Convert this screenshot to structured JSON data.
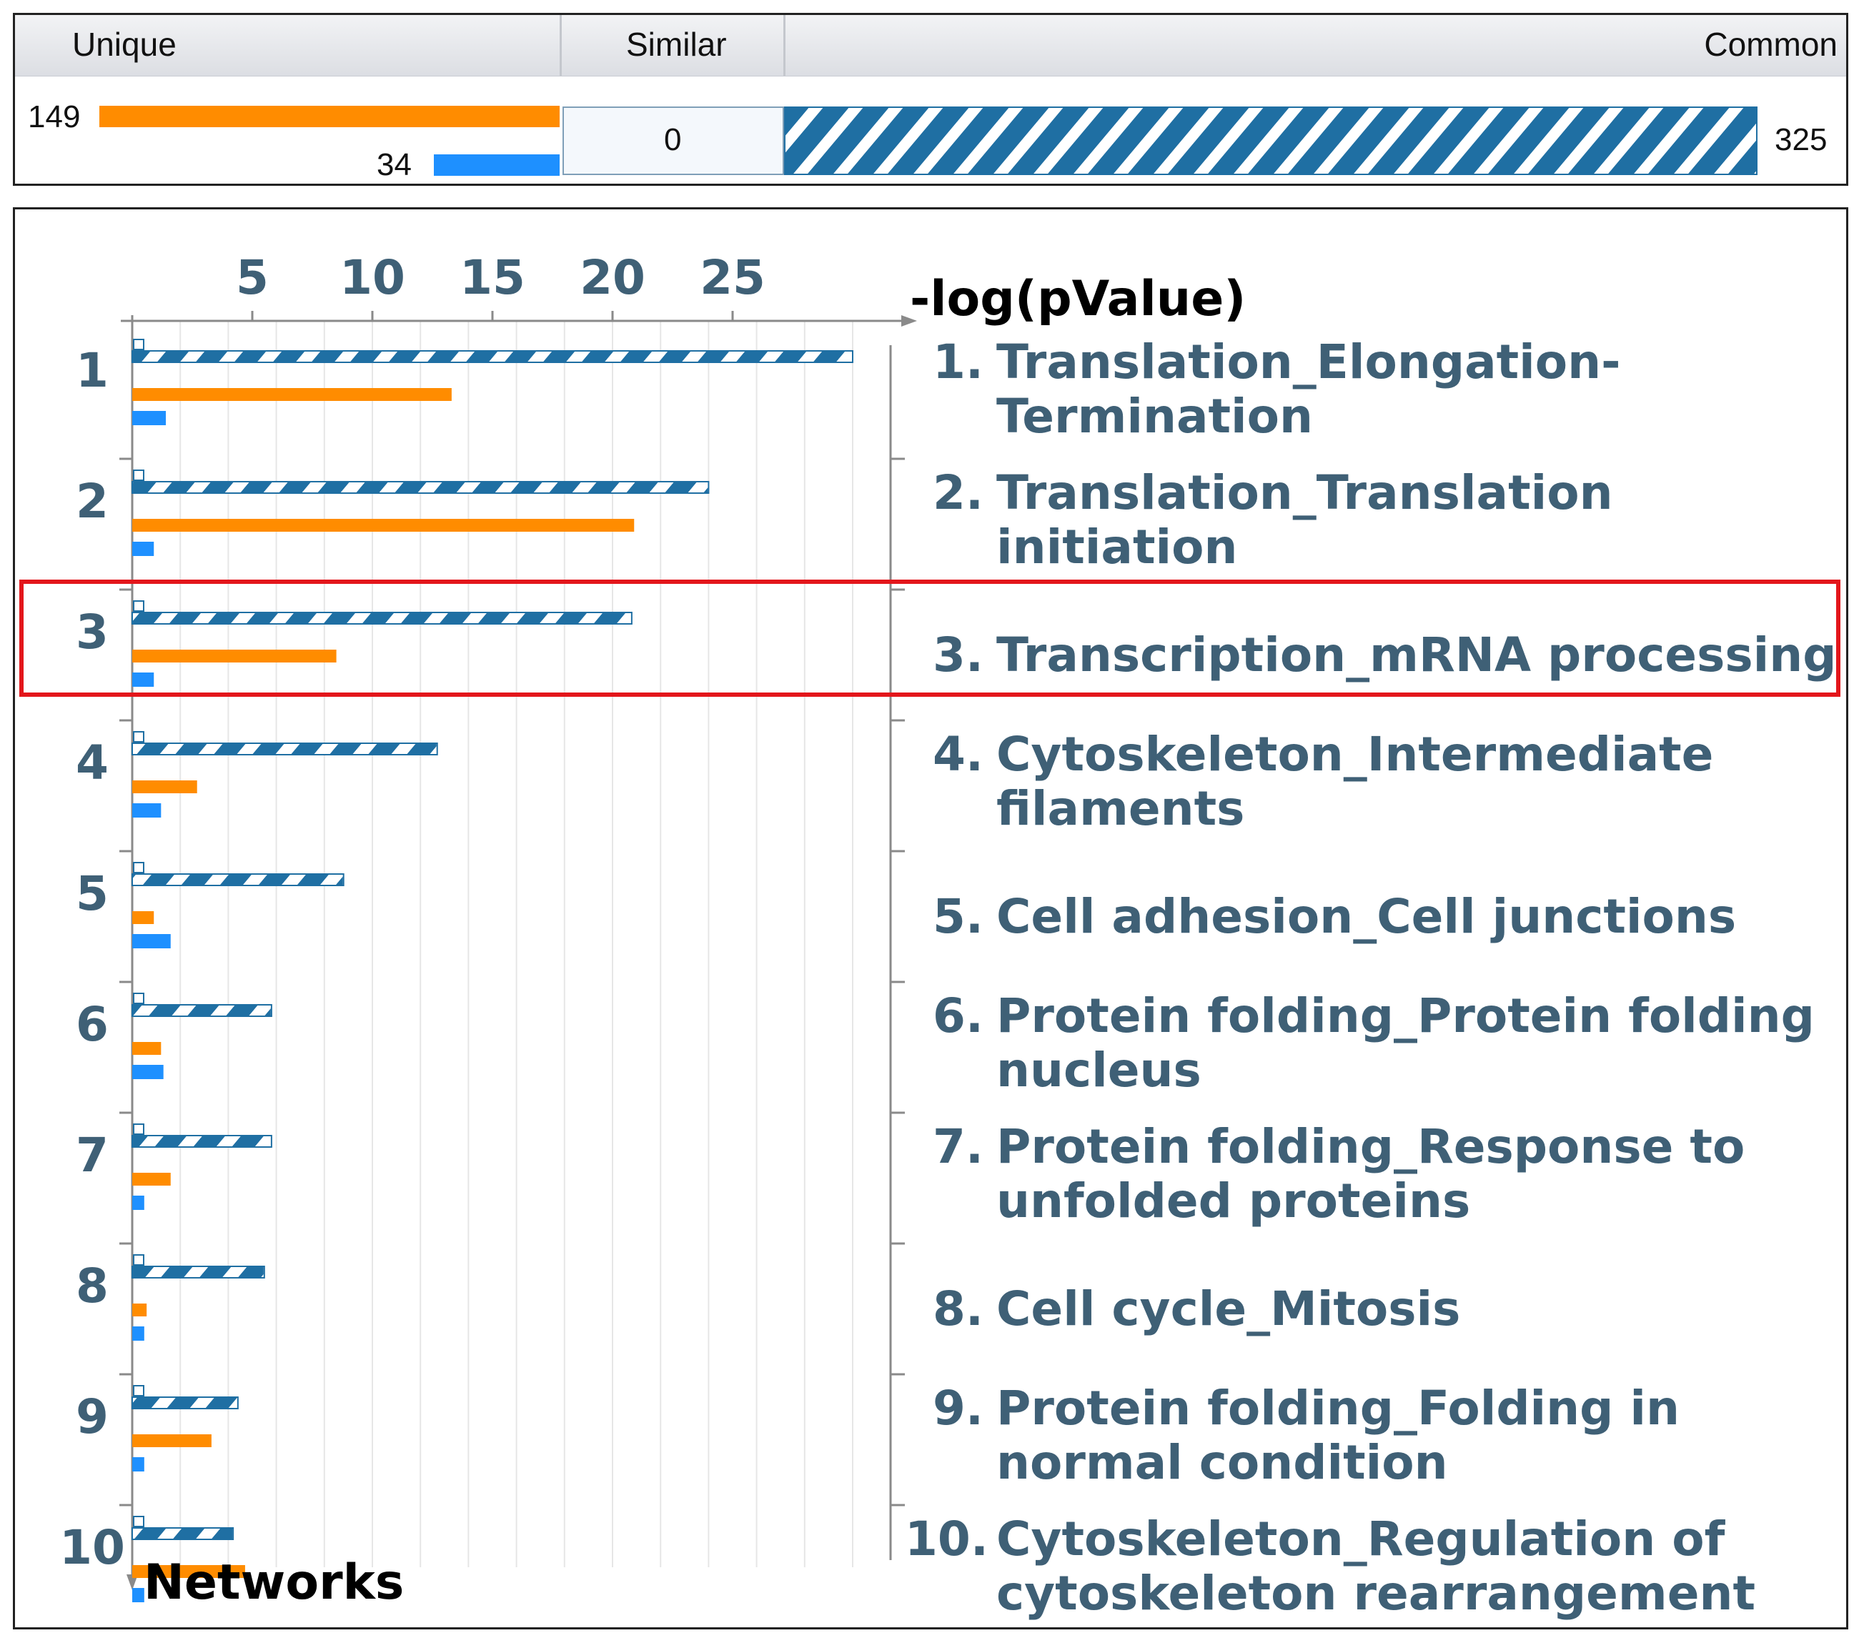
{
  "summary": {
    "headers": {
      "unique": "Unique",
      "similar": "Similar",
      "common": "Common"
    },
    "unique_orange": 149,
    "unique_blue": 34,
    "similar": 0,
    "common": 325,
    "colors": {
      "orange": "#ff8c00",
      "blue": "#1e90ff",
      "hatch": "#1f6fa3"
    }
  },
  "chart_data": {
    "type": "bar",
    "xlabel": "-log(pValue)",
    "ylabel": "Networks",
    "xticks": [
      5,
      10,
      15,
      20,
      25
    ],
    "xlim": [
      0,
      31.5
    ],
    "grid": true,
    "categories": [
      "1",
      "2",
      "3",
      "4",
      "5",
      "6",
      "7",
      "8",
      "9",
      "10"
    ],
    "series": [
      {
        "style": "hatched",
        "values": [
          30.0,
          24.0,
          20.8,
          12.7,
          8.8,
          5.8,
          5.8,
          5.5,
          4.4,
          4.2
        ]
      },
      {
        "style": "orange",
        "values": [
          13.3,
          20.9,
          8.5,
          2.7,
          0.9,
          1.2,
          1.6,
          0.6,
          3.3,
          4.7
        ]
      },
      {
        "style": "blue",
        "values": [
          1.4,
          0.9,
          0.9,
          1.2,
          1.6,
          1.3,
          0.5,
          0.5,
          0.5,
          0.5
        ]
      }
    ],
    "networks": [
      {
        "num": "1.",
        "name": "Translation_Elongation-Termination"
      },
      {
        "num": "2.",
        "name": "Translation_Translation initiation"
      },
      {
        "num": "3.",
        "name": "Transcription_mRNA processing"
      },
      {
        "num": "4.",
        "name": "Cytoskeleton_Intermediate filaments"
      },
      {
        "num": "5.",
        "name": "Cell adhesion_Cell junctions"
      },
      {
        "num": "6.",
        "name": "Protein folding_Protein folding nucleus"
      },
      {
        "num": "7.",
        "name": "Protein folding_Response to unfolded proteins"
      },
      {
        "num": "8.",
        "name": "Cell cycle_Mitosis"
      },
      {
        "num": "9.",
        "name": "Protein folding_Folding in normal condition"
      },
      {
        "num": "10.",
        "name": "Cytoskeleton_Regulation of cytoskeleton rearrangement"
      }
    ],
    "highlighted_index": 2
  }
}
